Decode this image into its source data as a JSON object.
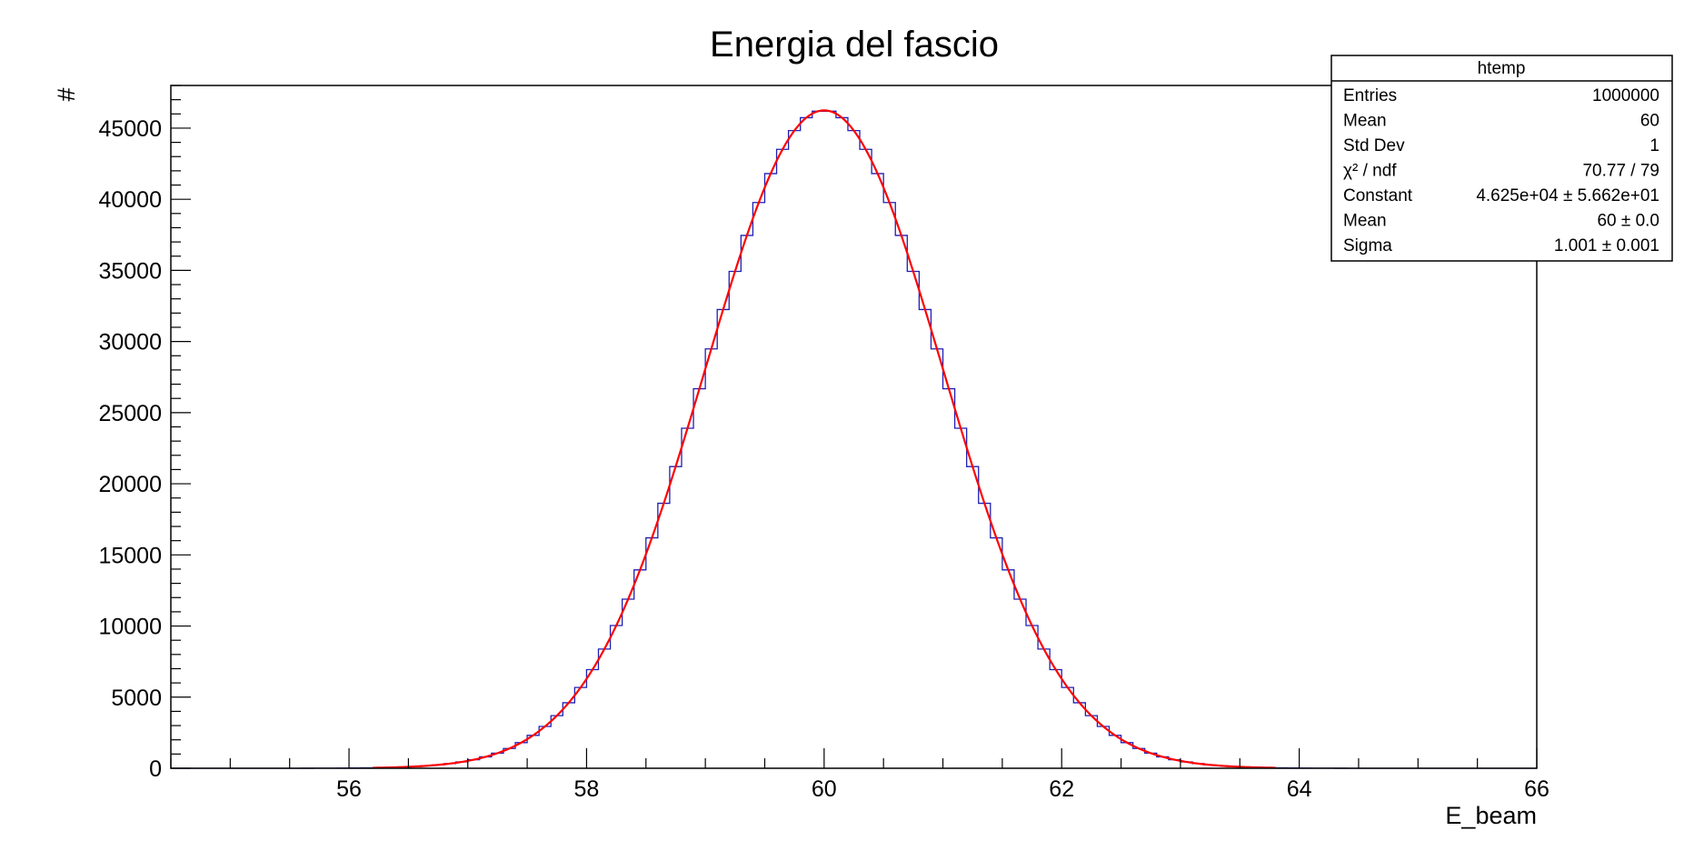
{
  "chart_data": {
    "type": "histogram",
    "title": "Energia del fascio",
    "xlabel": "E_beam",
    "ylabel": "#",
    "xlim": [
      54.5,
      66
    ],
    "ylim": [
      0,
      48000
    ],
    "x_ticks": [
      56,
      58,
      60,
      62,
      64,
      66
    ],
    "y_ticks": [
      0,
      5000,
      10000,
      15000,
      20000,
      25000,
      30000,
      35000,
      40000,
      45000
    ],
    "bins": {
      "low": 54.5,
      "width": 0.1,
      "count": 115
    },
    "histogram_color": "#1f1fb4",
    "fit": {
      "function": "gaus",
      "constant": 46250,
      "mean": 60.0,
      "sigma": 1.001,
      "color": "#ff0000"
    },
    "stats_box": {
      "title": "htemp",
      "rows": [
        {
          "label": "Entries",
          "value": "1000000"
        },
        {
          "label": "Mean",
          "value": "60"
        },
        {
          "label": "Std Dev",
          "value": "1"
        },
        {
          "label": "χ² / ndf",
          "value": "70.77 / 79"
        },
        {
          "label": "Constant",
          "value": "4.625e+04 ± 5.662e+01"
        },
        {
          "label": "Mean",
          "value": "60 ± 0.0"
        },
        {
          "label": "Sigma",
          "value": "1.001 ± 0.001"
        }
      ]
    }
  }
}
